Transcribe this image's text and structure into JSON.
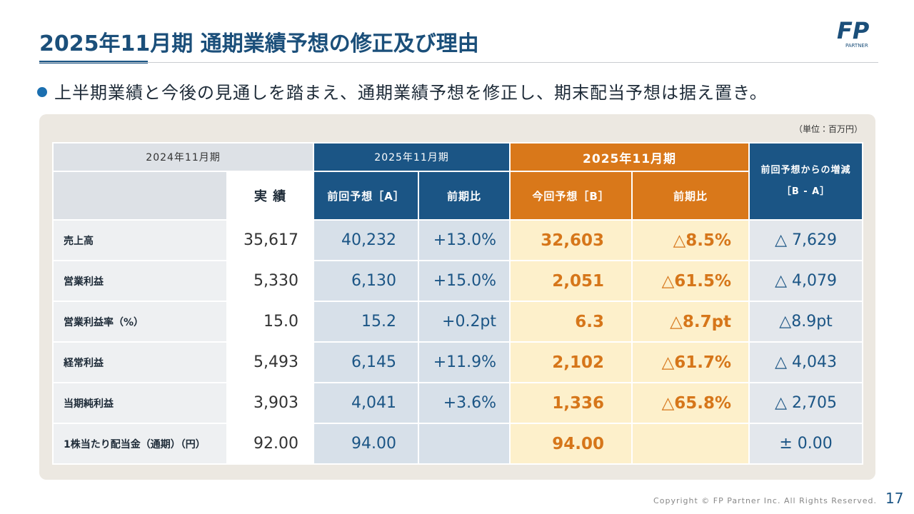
{
  "header": {
    "title": "2025年11月期 通期業績予想の修正及び理由",
    "logo": "FP",
    "logo_sub": "PARTNER"
  },
  "bullet": "上半期業績と今後の見通しを踏まえ、通期業績予想を修正し、期末配当予想は据え置き。",
  "table": {
    "unit": "（単位：百万円）",
    "groups": [
      "2024年11月期",
      "2025年11月期",
      "2025年11月期"
    ],
    "change_header": [
      "前回予想からの増減",
      "［B - A］"
    ],
    "columns": [
      "実 績",
      "前回予想［A］",
      "前期比",
      "今回予想［B］",
      "前期比"
    ],
    "rows": [
      [
        "売上高",
        "35,617",
        "40,232",
        "+13.0%",
        "32,603",
        "△8.5%",
        "△ 7,629"
      ],
      [
        "営業利益",
        "5,330",
        "6,130",
        "+15.0%",
        "2,051",
        "△61.5%",
        "△ 4,079"
      ],
      [
        "営業利益率（%）",
        "15.0",
        "15.2",
        "+0.2pt",
        "6.3",
        "△8.7pt",
        "△8.9pt"
      ],
      [
        "経常利益",
        "5,493",
        "6,145",
        "+11.9%",
        "2,102",
        "△61.7%",
        "△ 4,043"
      ],
      [
        "当期純利益",
        "3,903",
        "4,041",
        "+3.6%",
        "1,336",
        "△65.8%",
        "△ 2,705"
      ],
      [
        "1株当たり配当金（通期）（円）",
        "92.00",
        "94.00",
        null,
        "94.00",
        null,
        "± 0.00"
      ]
    ]
  },
  "footer": {
    "copyright": "Copyright © FP Partner Inc. All Rights Reserved.",
    "page": "17"
  }
}
